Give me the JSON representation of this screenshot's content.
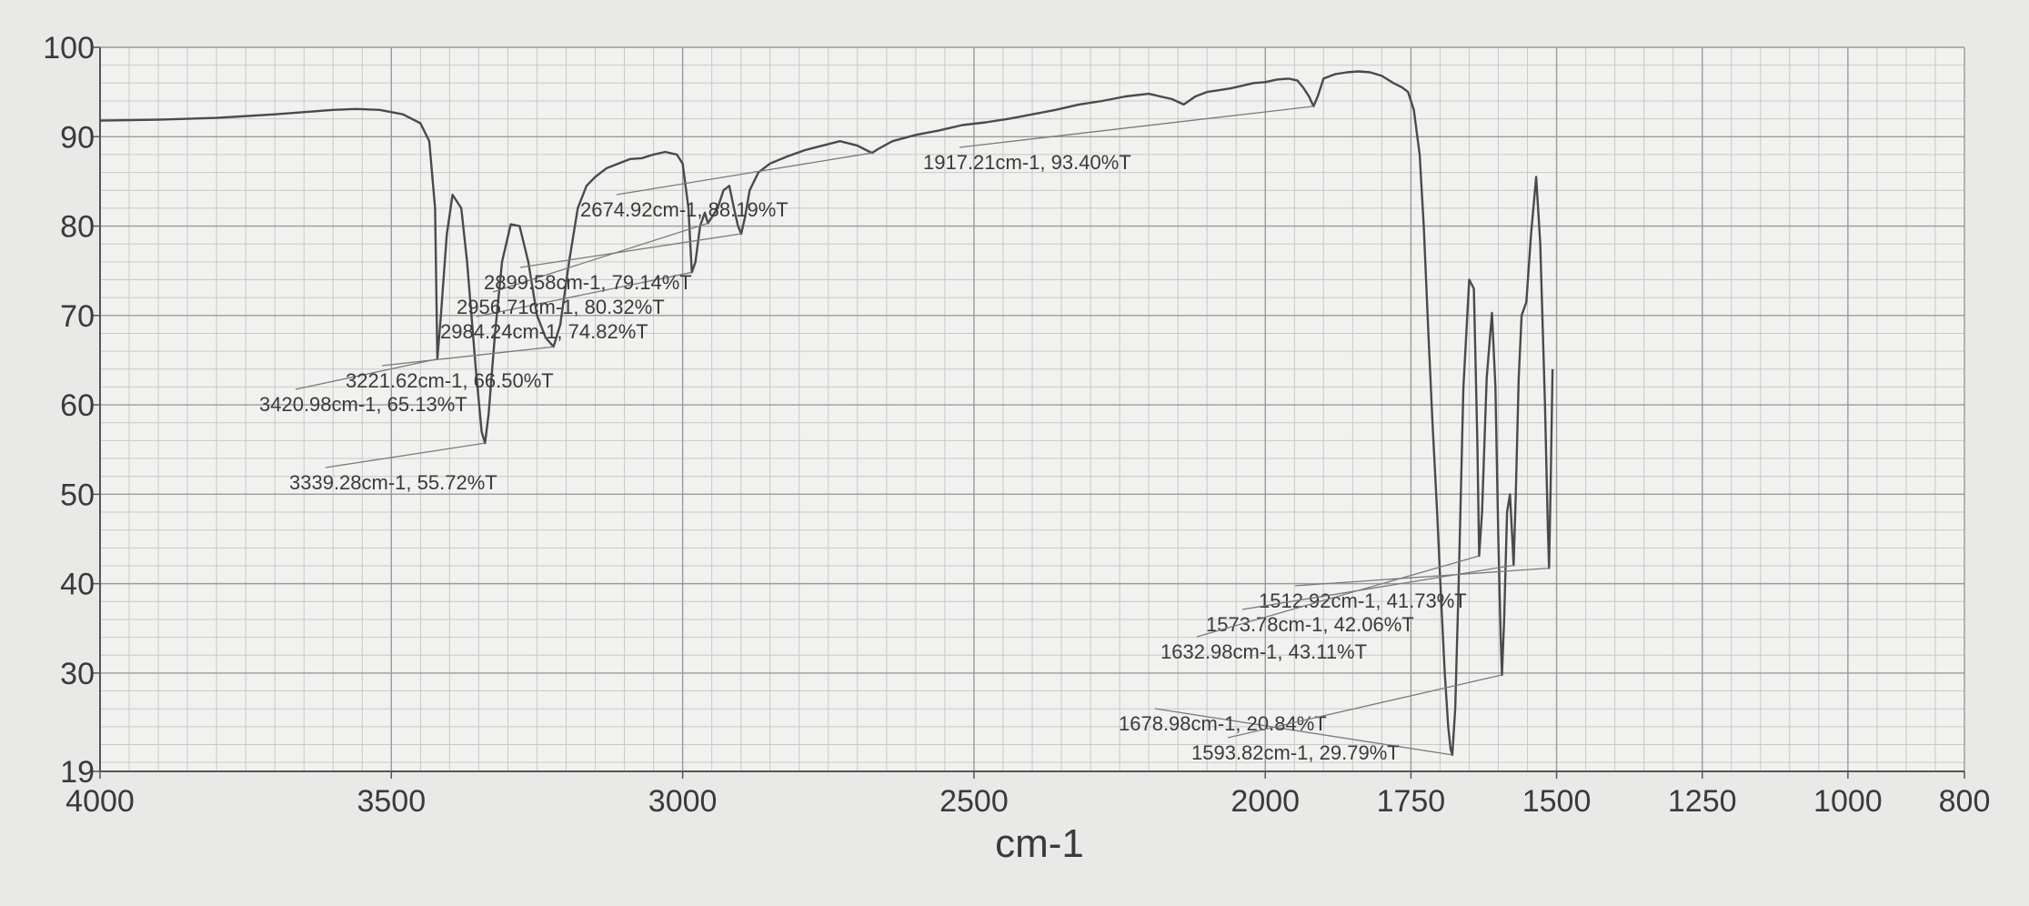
{
  "chart_data": {
    "type": "line",
    "title": "",
    "xlabel": "cm-1",
    "ylabel": "",
    "xlim": [
      4000,
      800
    ],
    "ylim": [
      19,
      100
    ],
    "x_ticks": [
      4000,
      3500,
      3000,
      2500,
      2000,
      1750,
      1500,
      1250,
      1000,
      800
    ],
    "y_ticks": [
      19,
      30,
      40,
      50,
      60,
      70,
      80,
      90,
      100
    ],
    "grid": true,
    "colors": {
      "line": "#4a4a4a",
      "grid_major": "#9a9a9a",
      "grid_minor": "#c8c8c8",
      "text": "#3a3a3a"
    },
    "series": [
      {
        "x": [
          4000,
          3900,
          3800,
          3700,
          3600,
          3560,
          3520,
          3480,
          3450,
          3435,
          3425,
          3420.98,
          3415,
          3405,
          3395,
          3380,
          3370,
          3355,
          3345,
          3339.28,
          3333,
          3322,
          3310,
          3295,
          3280,
          3265,
          3250,
          3235,
          3221.62,
          3210,
          3195,
          3180,
          3165,
          3150,
          3130,
          3110,
          3090,
          3070,
          3050,
          3030,
          3010,
          3000,
          2990,
          2984.24,
          2978,
          2970,
          2962,
          2956.71,
          2950,
          2940,
          2930,
          2920,
          2912,
          2905,
          2899.58,
          2893,
          2885,
          2870,
          2850,
          2820,
          2790,
          2760,
          2730,
          2700,
          2685,
          2674.92,
          2665,
          2640,
          2600,
          2560,
          2520,
          2480,
          2440,
          2400,
          2360,
          2320,
          2280,
          2240,
          2200,
          2160,
          2140,
          2120,
          2100,
          2080,
          2060,
          2040,
          2020,
          2000,
          1980,
          1960,
          1945,
          1935,
          1925,
          1917.21,
          1910,
          1900,
          1880,
          1860,
          1840,
          1820,
          1800,
          1780,
          1765,
          1755,
          1745,
          1735,
          1728,
          1720,
          1713,
          1705,
          1698,
          1692,
          1686,
          1682,
          1678.98,
          1674,
          1668,
          1660,
          1650,
          1642,
          1636,
          1632.98,
          1628,
          1620,
          1611,
          1605,
          1600,
          1596,
          1593.82,
          1590,
          1585,
          1580,
          1576,
          1573.78,
          1570,
          1565,
          1560,
          1552,
          1544,
          1535,
          1528,
          1520,
          1515,
          1512.92,
          1510,
          1507
        ],
        "y": [
          91.8,
          91.9,
          92.1,
          92.5,
          93.0,
          93.1,
          93.0,
          92.5,
          91.5,
          89.5,
          82.0,
          65.13,
          70.0,
          79.0,
          83.5,
          82.0,
          76.0,
          64.0,
          57.0,
          55.72,
          59.0,
          68.0,
          76.0,
          80.2,
          80.0,
          76.0,
          70.0,
          67.5,
          66.5,
          69.0,
          76.0,
          82.0,
          84.5,
          85.5,
          86.5,
          87.0,
          87.5,
          87.6,
          88.0,
          88.3,
          88.0,
          87.0,
          82.0,
          74.82,
          76.0,
          80.0,
          81.5,
          80.32,
          81.0,
          82.0,
          84.0,
          84.5,
          82.0,
          80.0,
          79.14,
          81.0,
          84.0,
          86.0,
          87.0,
          87.8,
          88.5,
          89.0,
          89.5,
          89.0,
          88.5,
          88.19,
          88.6,
          89.5,
          90.2,
          90.7,
          91.3,
          91.6,
          92.0,
          92.5,
          93.0,
          93.6,
          94.0,
          94.5,
          94.8,
          94.2,
          93.6,
          94.5,
          95.0,
          95.2,
          95.4,
          95.7,
          96.0,
          96.1,
          96.4,
          96.5,
          96.3,
          95.5,
          94.5,
          93.4,
          94.5,
          96.5,
          97.0,
          97.2,
          97.3,
          97.2,
          96.8,
          96.0,
          95.5,
          95.0,
          93.0,
          88.0,
          80.0,
          68.0,
          58.0,
          48.0,
          38.0,
          30.0,
          24.0,
          21.5,
          20.84,
          26.0,
          40.0,
          62.0,
          74.0,
          73.0,
          56.0,
          43.11,
          48.0,
          63.0,
          70.3,
          62.0,
          45.0,
          34.0,
          29.79,
          36.0,
          48.0,
          50.0,
          45.0,
          42.06,
          50.0,
          63.0,
          70.0,
          71.5,
          79.0,
          85.5,
          78.0,
          60.0,
          46.0,
          41.73,
          52.0,
          64.0
        ]
      }
    ],
    "annotations": [
      {
        "label": "3420.98cm-1, 65.13%T",
        "x": 3420.98,
        "y": 65.13
      },
      {
        "label": "3339.28cm-1, 55.72%T",
        "x": 3339.28,
        "y": 55.72
      },
      {
        "label": "3221.62cm-1, 66.50%T",
        "x": 3221.62,
        "y": 66.5
      },
      {
        "label": "2984.24cm-1, 74.82%T",
        "x": 2984.24,
        "y": 74.82
      },
      {
        "label": "2956.71cm-1, 80.32%T",
        "x": 2956.71,
        "y": 80.32
      },
      {
        "label": "2899.58cm-1, 79.14%T",
        "x": 2899.58,
        "y": 79.14
      },
      {
        "label": "2674.92cm-1, 88.19%T",
        "x": 2674.92,
        "y": 88.19
      },
      {
        "label": "1917.21cm-1, 93.40%T",
        "x": 1917.21,
        "y": 93.4
      },
      {
        "label": "1512.92cm-1, 41.73%T",
        "x": 1512.92,
        "y": 41.73
      },
      {
        "label": "1573.78cm-1, 42.06%T",
        "x": 1573.78,
        "y": 42.06
      },
      {
        "label": "1632.98cm-1, 43.11%T",
        "x": 1632.98,
        "y": 43.11
      },
      {
        "label": "1678.98cm-1, 20.84%T",
        "x": 1678.98,
        "y": 20.84
      },
      {
        "label": "1593.82cm-1, 29.79%T",
        "x": 1593.82,
        "y": 29.79
      }
    ]
  }
}
